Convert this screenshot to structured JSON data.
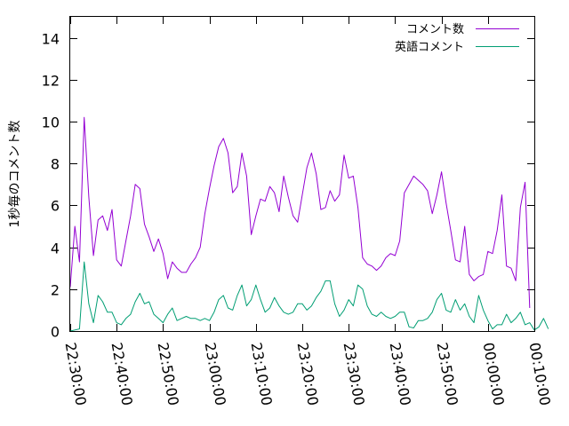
{
  "chart_data": {
    "type": "line",
    "ylabel": "1秒毎のコメント数",
    "ylim": [
      0,
      15
    ],
    "yticks": [
      0,
      2,
      4,
      6,
      8,
      10,
      12,
      14
    ],
    "xticks": [
      "22:30:00",
      "22:40:00",
      "22:50:00",
      "23:00:00",
      "23:10:00",
      "23:20:00",
      "23:30:00",
      "23:40:00",
      "23:50:00",
      "00:00:00",
      "00:10:00"
    ],
    "xlim_minutes": [
      0,
      100
    ],
    "legend_position": "top-right",
    "grid": false,
    "series": [
      {
        "name": "コメント数",
        "color": "#9400d3",
        "points": [
          [
            0.0,
            2.1
          ],
          [
            1.0,
            5.0
          ],
          [
            2.0,
            3.3
          ],
          [
            3.0,
            10.2
          ],
          [
            4.0,
            6.4
          ],
          [
            5.0,
            3.6
          ],
          [
            6.0,
            5.3
          ],
          [
            7.0,
            5.5
          ],
          [
            8.0,
            4.8
          ],
          [
            9.0,
            5.8
          ],
          [
            10.0,
            3.4
          ],
          [
            11.0,
            3.1
          ],
          [
            12.0,
            4.3
          ],
          [
            13.0,
            5.5
          ],
          [
            14.0,
            7.0
          ],
          [
            15.0,
            6.8
          ],
          [
            16.0,
            5.1
          ],
          [
            17.0,
            4.5
          ],
          [
            18.0,
            3.8
          ],
          [
            19.0,
            4.4
          ],
          [
            20.0,
            3.7
          ],
          [
            21.0,
            2.5
          ],
          [
            22.0,
            3.3
          ],
          [
            23.0,
            3.0
          ],
          [
            24.0,
            2.8
          ],
          [
            25.0,
            2.8
          ],
          [
            26.0,
            3.2
          ],
          [
            27.0,
            3.5
          ],
          [
            28.0,
            4.0
          ],
          [
            29.0,
            5.6
          ],
          [
            30.0,
            6.8
          ],
          [
            31.0,
            7.9
          ],
          [
            32.0,
            8.8
          ],
          [
            33.0,
            9.2
          ],
          [
            34.0,
            8.5
          ],
          [
            35.0,
            6.6
          ],
          [
            36.0,
            6.9
          ],
          [
            37.0,
            8.5
          ],
          [
            38.0,
            7.4
          ],
          [
            39.0,
            4.6
          ],
          [
            40.0,
            5.5
          ],
          [
            41.0,
            6.3
          ],
          [
            42.0,
            6.2
          ],
          [
            43.0,
            6.9
          ],
          [
            44.0,
            6.6
          ],
          [
            45.0,
            5.7
          ],
          [
            46.0,
            7.4
          ],
          [
            47.0,
            6.4
          ],
          [
            48.0,
            5.5
          ],
          [
            49.0,
            5.2
          ],
          [
            50.0,
            6.5
          ],
          [
            51.0,
            7.8
          ],
          [
            52.0,
            8.5
          ],
          [
            53.0,
            7.5
          ],
          [
            54.0,
            5.8
          ],
          [
            55.0,
            5.9
          ],
          [
            56.0,
            6.7
          ],
          [
            57.0,
            6.2
          ],
          [
            58.0,
            6.5
          ],
          [
            59.0,
            8.4
          ],
          [
            60.0,
            7.3
          ],
          [
            61.0,
            7.4
          ],
          [
            62.0,
            5.9
          ],
          [
            63.0,
            3.5
          ],
          [
            64.0,
            3.2
          ],
          [
            65.0,
            3.1
          ],
          [
            66.0,
            2.9
          ],
          [
            67.0,
            3.1
          ],
          [
            68.0,
            3.5
          ],
          [
            69.0,
            3.7
          ],
          [
            70.0,
            3.6
          ],
          [
            71.0,
            4.3
          ],
          [
            72.0,
            6.6
          ],
          [
            73.0,
            7.0
          ],
          [
            74.0,
            7.4
          ],
          [
            75.0,
            7.2
          ],
          [
            76.0,
            7.0
          ],
          [
            77.0,
            6.7
          ],
          [
            78.0,
            5.6
          ],
          [
            79.0,
            6.5
          ],
          [
            80.0,
            7.6
          ],
          [
            81.0,
            6.1
          ],
          [
            82.0,
            4.8
          ],
          [
            83.0,
            3.4
          ],
          [
            84.0,
            3.3
          ],
          [
            85.0,
            5.0
          ],
          [
            86.0,
            2.7
          ],
          [
            87.0,
            2.4
          ],
          [
            88.0,
            2.6
          ],
          [
            89.0,
            2.7
          ],
          [
            90.0,
            3.8
          ],
          [
            91.0,
            3.7
          ],
          [
            92.0,
            4.8
          ],
          [
            93.0,
            6.5
          ],
          [
            94.0,
            3.1
          ],
          [
            95.0,
            3.0
          ],
          [
            96.0,
            2.4
          ],
          [
            97.0,
            5.9
          ],
          [
            98.0,
            7.1
          ],
          [
            99.0,
            1.1
          ]
        ]
      },
      {
        "name": "英語コメント",
        "color": "#009e73",
        "points": [
          [
            0.0,
            0.0
          ],
          [
            1.0,
            0.05
          ],
          [
            2.0,
            0.1
          ],
          [
            3.0,
            3.3
          ],
          [
            4.0,
            1.3
          ],
          [
            5.0,
            0.4
          ],
          [
            6.0,
            1.7
          ],
          [
            7.0,
            1.4
          ],
          [
            8.0,
            0.9
          ],
          [
            9.0,
            0.9
          ],
          [
            10.0,
            0.4
          ],
          [
            11.0,
            0.3
          ],
          [
            12.0,
            0.6
          ],
          [
            13.0,
            0.8
          ],
          [
            14.0,
            1.4
          ],
          [
            15.0,
            1.8
          ],
          [
            16.0,
            1.3
          ],
          [
            17.0,
            1.4
          ],
          [
            18.0,
            0.8
          ],
          [
            19.0,
            0.6
          ],
          [
            20.0,
            0.4
          ],
          [
            21.0,
            0.8
          ],
          [
            22.0,
            1.1
          ],
          [
            23.0,
            0.5
          ],
          [
            24.0,
            0.6
          ],
          [
            25.0,
            0.7
          ],
          [
            26.0,
            0.6
          ],
          [
            27.0,
            0.6
          ],
          [
            28.0,
            0.5
          ],
          [
            29.0,
            0.6
          ],
          [
            30.0,
            0.5
          ],
          [
            31.0,
            0.9
          ],
          [
            32.0,
            1.5
          ],
          [
            33.0,
            1.7
          ],
          [
            34.0,
            1.1
          ],
          [
            35.0,
            1.0
          ],
          [
            36.0,
            1.7
          ],
          [
            37.0,
            2.2
          ],
          [
            38.0,
            1.2
          ],
          [
            39.0,
            1.5
          ],
          [
            40.0,
            2.2
          ],
          [
            41.0,
            1.5
          ],
          [
            42.0,
            0.9
          ],
          [
            43.0,
            1.1
          ],
          [
            44.0,
            1.6
          ],
          [
            45.0,
            1.2
          ],
          [
            46.0,
            0.9
          ],
          [
            47.0,
            0.8
          ],
          [
            48.0,
            0.9
          ],
          [
            49.0,
            1.3
          ],
          [
            50.0,
            1.3
          ],
          [
            51.0,
            1.0
          ],
          [
            52.0,
            1.2
          ],
          [
            53.0,
            1.6
          ],
          [
            54.0,
            1.9
          ],
          [
            55.0,
            2.4
          ],
          [
            56.0,
            2.4
          ],
          [
            57.0,
            1.3
          ],
          [
            58.0,
            0.7
          ],
          [
            59.0,
            1.0
          ],
          [
            60.0,
            1.5
          ],
          [
            61.0,
            1.2
          ],
          [
            62.0,
            2.2
          ],
          [
            63.0,
            2.0
          ],
          [
            64.0,
            1.2
          ],
          [
            65.0,
            0.8
          ],
          [
            66.0,
            0.7
          ],
          [
            67.0,
            0.9
          ],
          [
            68.0,
            0.7
          ],
          [
            69.0,
            0.6
          ],
          [
            70.0,
            0.7
          ],
          [
            71.0,
            0.9
          ],
          [
            72.0,
            0.9
          ],
          [
            73.0,
            0.2
          ],
          [
            74.0,
            0.15
          ],
          [
            75.0,
            0.5
          ],
          [
            76.0,
            0.5
          ],
          [
            77.0,
            0.6
          ],
          [
            78.0,
            0.9
          ],
          [
            79.0,
            1.5
          ],
          [
            80.0,
            1.8
          ],
          [
            81.0,
            1.0
          ],
          [
            82.0,
            0.9
          ],
          [
            83.0,
            1.5
          ],
          [
            84.0,
            1.0
          ],
          [
            85.0,
            1.3
          ],
          [
            86.0,
            0.7
          ],
          [
            87.0,
            0.4
          ],
          [
            88.0,
            1.7
          ],
          [
            89.0,
            1.0
          ],
          [
            90.0,
            0.5
          ],
          [
            91.0,
            0.1
          ],
          [
            92.0,
            0.3
          ],
          [
            93.0,
            0.3
          ],
          [
            94.0,
            0.8
          ],
          [
            95.0,
            0.4
          ],
          [
            96.0,
            0.6
          ],
          [
            97.0,
            0.9
          ],
          [
            98.0,
            0.3
          ],
          [
            99.0,
            0.4
          ],
          [
            100.0,
            0.05
          ],
          [
            101.0,
            0.2
          ],
          [
            102.0,
            0.6
          ],
          [
            103.0,
            0.1
          ]
        ]
      }
    ]
  }
}
